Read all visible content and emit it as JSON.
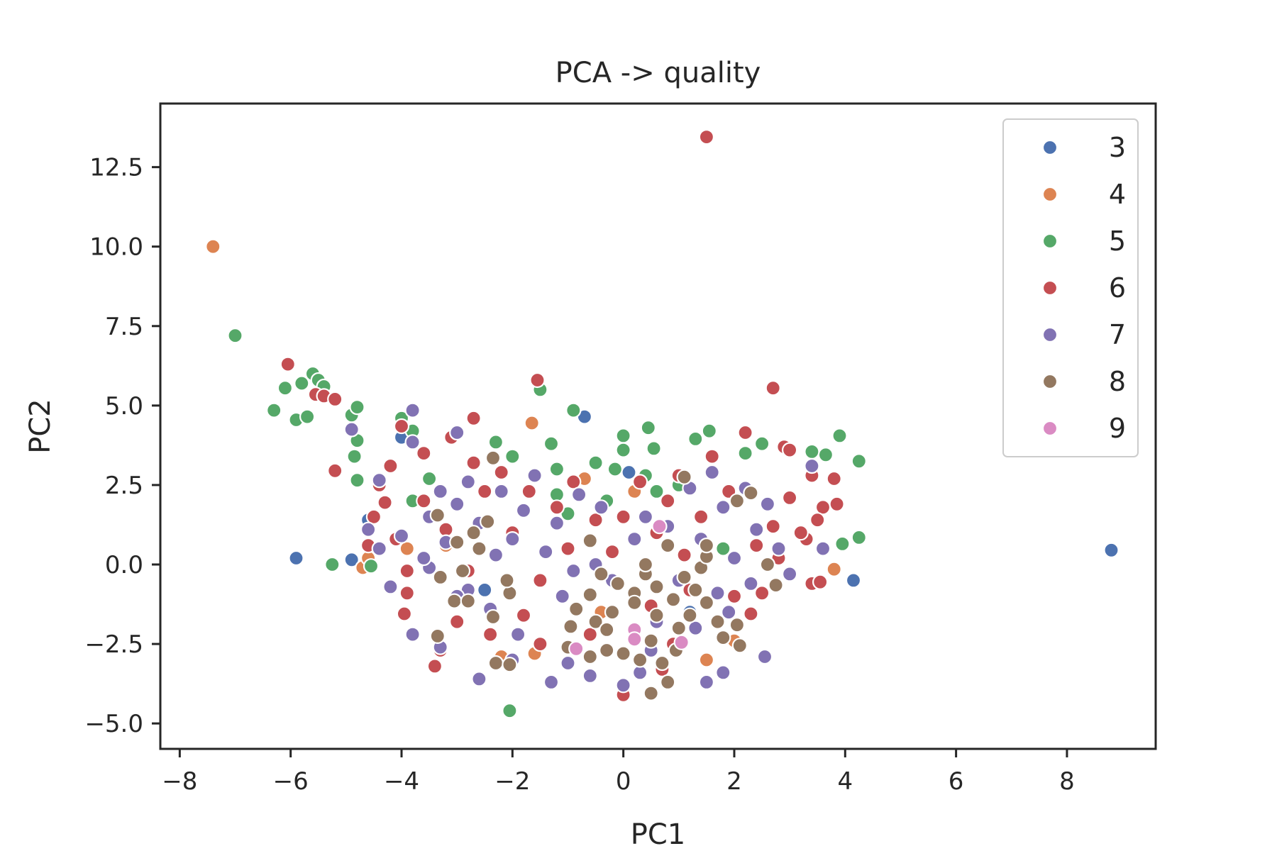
{
  "chart_data": {
    "type": "scatter",
    "title": "PCA -> quality",
    "xlabel": "PC1",
    "ylabel": "PC2",
    "xlim": [
      -8.35,
      9.6
    ],
    "ylim": [
      -5.8,
      14.5
    ],
    "xticks": [
      -8,
      -6,
      -4,
      -2,
      0,
      2,
      4,
      6,
      8
    ],
    "xtick_labels": [
      "−8",
      "−6",
      "−4",
      "−2",
      "0",
      "2",
      "4",
      "6",
      "8"
    ],
    "yticks": [
      -5.0,
      -2.5,
      0.0,
      2.5,
      5.0,
      7.5,
      10.0,
      12.5
    ],
    "ytick_labels": [
      "−5.0",
      "−2.5",
      "0.0",
      "2.5",
      "5.0",
      "7.5",
      "10.0",
      "12.5"
    ],
    "grid": false,
    "legend_position": "upper right",
    "colors": {
      "3": "#4c72b0",
      "4": "#dd8452",
      "5": "#55a868",
      "6": "#c44e52",
      "7": "#8172b3",
      "8": "#937860",
      "9": "#da8bc3"
    },
    "series": [
      {
        "name": "3",
        "points": [
          [
            -5.9,
            0.2
          ],
          [
            -4.9,
            0.15
          ],
          [
            -4.6,
            1.4
          ],
          [
            -4.0,
            4.0
          ],
          [
            -0.7,
            4.65
          ],
          [
            0.1,
            2.9
          ],
          [
            4.15,
            -0.5
          ],
          [
            8.8,
            0.45
          ],
          [
            -2.5,
            -0.8
          ],
          [
            1.2,
            -1.5
          ]
        ]
      },
      {
        "name": "4",
        "points": [
          [
            -7.4,
            10.0
          ],
          [
            -1.65,
            4.45
          ],
          [
            -4.7,
            -0.1
          ],
          [
            -4.6,
            0.2
          ],
          [
            -3.9,
            0.5
          ],
          [
            -0.7,
            2.7
          ],
          [
            0.2,
            2.3
          ],
          [
            3.8,
            -0.15
          ],
          [
            -2.2,
            -2.9
          ],
          [
            -1.6,
            -2.8
          ],
          [
            -3.2,
            0.6
          ],
          [
            2.0,
            -2.4
          ],
          [
            -0.4,
            -1.5
          ],
          [
            1.5,
            -3.0
          ]
        ]
      },
      {
        "name": "5",
        "points": [
          [
            -7.0,
            7.2
          ],
          [
            -6.3,
            4.85
          ],
          [
            -6.1,
            5.55
          ],
          [
            -5.9,
            4.55
          ],
          [
            -5.8,
            5.7
          ],
          [
            -5.7,
            4.65
          ],
          [
            -5.6,
            6.0
          ],
          [
            -5.5,
            5.8
          ],
          [
            -5.4,
            5.6
          ],
          [
            -4.9,
            4.7
          ],
          [
            -4.8,
            4.95
          ],
          [
            -4.8,
            3.9
          ],
          [
            -4.85,
            3.4
          ],
          [
            -4.8,
            2.65
          ],
          [
            -5.25,
            0.0
          ],
          [
            -4.55,
            -0.05
          ],
          [
            -4.0,
            4.6
          ],
          [
            -3.8,
            4.2
          ],
          [
            -1.5,
            5.5
          ],
          [
            -0.9,
            4.85
          ],
          [
            -1.3,
            3.8
          ],
          [
            0.0,
            4.05
          ],
          [
            0.45,
            4.3
          ],
          [
            0.55,
            3.65
          ],
          [
            1.3,
            3.95
          ],
          [
            1.55,
            4.2
          ],
          [
            0.0,
            3.6
          ],
          [
            0.4,
            2.8
          ],
          [
            -0.15,
            3.0
          ],
          [
            -2.3,
            3.85
          ],
          [
            -2.0,
            3.4
          ],
          [
            -1.2,
            3.0
          ],
          [
            -0.5,
            3.2
          ],
          [
            3.9,
            4.05
          ],
          [
            4.25,
            3.25
          ],
          [
            3.65,
            3.45
          ],
          [
            3.4,
            3.55
          ],
          [
            4.25,
            0.85
          ],
          [
            3.95,
            0.65
          ],
          [
            2.5,
            3.8
          ],
          [
            1.0,
            2.5
          ],
          [
            0.6,
            2.3
          ],
          [
            -2.05,
            -4.6
          ],
          [
            -1.2,
            2.2
          ],
          [
            -0.3,
            2.0
          ],
          [
            2.2,
            3.5
          ],
          [
            -3.8,
            2.0
          ],
          [
            -3.5,
            2.7
          ],
          [
            1.8,
            0.5
          ],
          [
            -1.0,
            1.6
          ]
        ]
      },
      {
        "name": "6",
        "points": [
          [
            1.5,
            13.45
          ],
          [
            -6.05,
            6.3
          ],
          [
            -5.55,
            5.35
          ],
          [
            -5.4,
            5.3
          ],
          [
            -5.2,
            5.2
          ],
          [
            -5.2,
            2.95
          ],
          [
            -1.55,
            5.8
          ],
          [
            2.7,
            5.55
          ],
          [
            -4.0,
            4.35
          ],
          [
            -3.6,
            3.5
          ],
          [
            -3.1,
            4.0
          ],
          [
            -2.7,
            4.6
          ],
          [
            2.2,
            4.15
          ],
          [
            2.9,
            3.7
          ],
          [
            0.0,
            1.5
          ],
          [
            -0.9,
            2.6
          ],
          [
            -4.2,
            3.1
          ],
          [
            -4.4,
            2.5
          ],
          [
            -4.3,
            1.95
          ],
          [
            -4.5,
            1.5
          ],
          [
            -4.6,
            0.6
          ],
          [
            -4.1,
            0.8
          ],
          [
            -3.9,
            -0.2
          ],
          [
            -3.9,
            -0.9
          ],
          [
            -3.95,
            -1.55
          ],
          [
            -3.3,
            -2.7
          ],
          [
            -3.4,
            -3.2
          ],
          [
            -2.4,
            -2.2
          ],
          [
            -1.5,
            -2.5
          ],
          [
            0.0,
            -4.1
          ],
          [
            0.7,
            -3.3
          ],
          [
            3.0,
            3.6
          ],
          [
            3.4,
            2.8
          ],
          [
            3.6,
            1.8
          ],
          [
            3.8,
            2.7
          ],
          [
            3.85,
            1.9
          ],
          [
            3.5,
            1.4
          ],
          [
            3.3,
            0.8
          ],
          [
            2.8,
            0.2
          ],
          [
            3.4,
            -0.6
          ],
          [
            3.55,
            -0.55
          ],
          [
            2.3,
            -1.55
          ],
          [
            2.5,
            -0.9
          ],
          [
            1.6,
            3.4
          ],
          [
            1.0,
            2.8
          ],
          [
            0.6,
            1.0
          ],
          [
            -1.0,
            0.5
          ],
          [
            -2.5,
            2.3
          ],
          [
            -2.0,
            1.0
          ],
          [
            -1.5,
            -0.5
          ],
          [
            -0.5,
            1.4
          ],
          [
            0.9,
            -2.5
          ],
          [
            1.2,
            -0.8
          ],
          [
            -2.8,
            -0.2
          ],
          [
            -3.2,
            1.1
          ],
          [
            -2.2,
            2.9
          ],
          [
            1.9,
            2.3
          ],
          [
            2.7,
            1.2
          ],
          [
            3.0,
            2.1
          ],
          [
            -0.2,
            0.4
          ],
          [
            0.5,
            -1.3
          ],
          [
            -1.8,
            -1.6
          ],
          [
            2.0,
            -1.0
          ],
          [
            -3.6,
            2.0
          ],
          [
            -1.2,
            1.8
          ],
          [
            0.3,
            2.6
          ],
          [
            1.4,
            1.5
          ],
          [
            -0.6,
            -2.2
          ],
          [
            2.4,
            0.6
          ],
          [
            -2.7,
            3.2
          ],
          [
            -3.0,
            -1.8
          ],
          [
            3.2,
            1.0
          ],
          [
            1.1,
            0.3
          ],
          [
            -1.7,
            2.3
          ],
          [
            0.8,
            2.0
          ]
        ]
      },
      {
        "name": "7",
        "points": [
          [
            -3.8,
            4.85
          ],
          [
            -4.9,
            4.25
          ],
          [
            -4.4,
            2.65
          ],
          [
            -3.8,
            3.85
          ],
          [
            -3.0,
            4.15
          ],
          [
            3.4,
            3.1
          ],
          [
            3.6,
            0.5
          ],
          [
            2.55,
            -2.9
          ],
          [
            1.5,
            -3.7
          ],
          [
            1.8,
            -3.4
          ],
          [
            -0.6,
            -3.5
          ],
          [
            -1.3,
            -3.7
          ],
          [
            -2.6,
            -3.6
          ],
          [
            -3.3,
            -2.6
          ],
          [
            -3.8,
            -2.2
          ],
          [
            -4.2,
            -0.7
          ],
          [
            -4.6,
            1.1
          ],
          [
            -4.4,
            0.5
          ],
          [
            -4.0,
            0.9
          ],
          [
            -3.5,
            1.5
          ],
          [
            -3.2,
            0.7
          ],
          [
            -3.0,
            1.9
          ],
          [
            -2.8,
            2.6
          ],
          [
            -2.6,
            1.3
          ],
          [
            -2.2,
            2.3
          ],
          [
            -2.0,
            0.8
          ],
          [
            -1.8,
            1.7
          ],
          [
            -1.6,
            2.8
          ],
          [
            -1.4,
            0.4
          ],
          [
            -1.2,
            1.3
          ],
          [
            -0.9,
            -0.2
          ],
          [
            -0.5,
            0.0
          ],
          [
            -0.2,
            -0.5
          ],
          [
            0.0,
            -3.8
          ],
          [
            0.3,
            -3.4
          ],
          [
            0.8,
            1.2
          ],
          [
            1.0,
            -0.5
          ],
          [
            1.2,
            2.4
          ],
          [
            1.4,
            0.8
          ],
          [
            1.6,
            2.9
          ],
          [
            1.8,
            1.8
          ],
          [
            2.0,
            0.2
          ],
          [
            2.2,
            2.4
          ],
          [
            2.4,
            1.1
          ],
          [
            2.6,
            1.9
          ],
          [
            2.8,
            0.5
          ],
          [
            3.0,
            -0.3
          ],
          [
            -2.4,
            -1.4
          ],
          [
            -1.9,
            -2.2
          ],
          [
            -2.8,
            -0.8
          ],
          [
            -3.0,
            -1.0
          ],
          [
            0.5,
            -2.7
          ],
          [
            1.3,
            -2.0
          ],
          [
            1.9,
            -1.5
          ],
          [
            -1.0,
            -3.1
          ],
          [
            -3.5,
            -0.1
          ],
          [
            -2.0,
            -3.0
          ],
          [
            -0.4,
            1.8
          ],
          [
            0.2,
            0.8
          ],
          [
            -3.6,
            0.2
          ],
          [
            2.3,
            -0.6
          ],
          [
            -1.1,
            -1.0
          ],
          [
            0.6,
            -1.8
          ],
          [
            -2.3,
            0.3
          ],
          [
            1.7,
            -0.9
          ],
          [
            -0.8,
            2.2
          ],
          [
            0.4,
            1.5
          ],
          [
            -3.3,
            2.3
          ]
        ]
      },
      {
        "name": "8",
        "points": [
          [
            -3.35,
            1.55
          ],
          [
            -2.35,
            3.35
          ],
          [
            -2.45,
            1.35
          ],
          [
            -2.7,
            1.0
          ],
          [
            -3.0,
            0.7
          ],
          [
            -2.6,
            0.5
          ],
          [
            -2.9,
            -0.2
          ],
          [
            -3.3,
            -0.4
          ],
          [
            -3.05,
            -1.15
          ],
          [
            -2.8,
            -1.15
          ],
          [
            -3.35,
            -2.25
          ],
          [
            -2.3,
            -3.1
          ],
          [
            -2.05,
            -3.15
          ],
          [
            -2.35,
            -1.65
          ],
          [
            -2.05,
            -0.9
          ],
          [
            -2.1,
            -0.5
          ],
          [
            -0.6,
            0.75
          ],
          [
            -0.6,
            -0.95
          ],
          [
            -0.85,
            -1.4
          ],
          [
            -0.95,
            -1.95
          ],
          [
            -0.5,
            -1.8
          ],
          [
            -0.3,
            -2.05
          ],
          [
            -0.2,
            -1.5
          ],
          [
            -0.6,
            -2.9
          ],
          [
            -0.3,
            -2.7
          ],
          [
            0.0,
            -2.8
          ],
          [
            0.3,
            -3.0
          ],
          [
            0.5,
            -2.4
          ],
          [
            0.7,
            -3.1
          ],
          [
            0.8,
            -3.7
          ],
          [
            0.5,
            -4.05
          ],
          [
            0.2,
            -0.9
          ],
          [
            0.4,
            -0.3
          ],
          [
            0.6,
            -0.7
          ],
          [
            0.9,
            -1.1
          ],
          [
            1.1,
            -0.4
          ],
          [
            1.3,
            -0.8
          ],
          [
            1.5,
            -1.2
          ],
          [
            1.4,
            -0.1
          ],
          [
            1.5,
            0.25
          ],
          [
            1.5,
            0.6
          ],
          [
            1.1,
            2.75
          ],
          [
            0.4,
            0.0
          ],
          [
            0.8,
            0.6
          ],
          [
            2.05,
            -1.9
          ],
          [
            2.1,
            -2.55
          ],
          [
            2.3,
            2.25
          ],
          [
            2.05,
            2.0
          ],
          [
            2.6,
            0.0
          ],
          [
            2.75,
            -0.65
          ],
          [
            1.0,
            -2.0
          ],
          [
            0.6,
            -1.6
          ],
          [
            0.2,
            -1.2
          ],
          [
            -0.1,
            -0.6
          ],
          [
            -0.4,
            -0.3
          ],
          [
            1.7,
            -1.8
          ],
          [
            0.95,
            -2.7
          ],
          [
            -1.0,
            -2.6
          ],
          [
            1.2,
            -1.6
          ],
          [
            1.8,
            -2.3
          ]
        ]
      },
      {
        "name": "9",
        "points": [
          [
            0.65,
            1.2
          ],
          [
            -0.85,
            -2.65
          ],
          [
            0.2,
            -2.05
          ],
          [
            0.2,
            -2.35
          ],
          [
            1.05,
            -2.45
          ]
        ]
      }
    ]
  }
}
